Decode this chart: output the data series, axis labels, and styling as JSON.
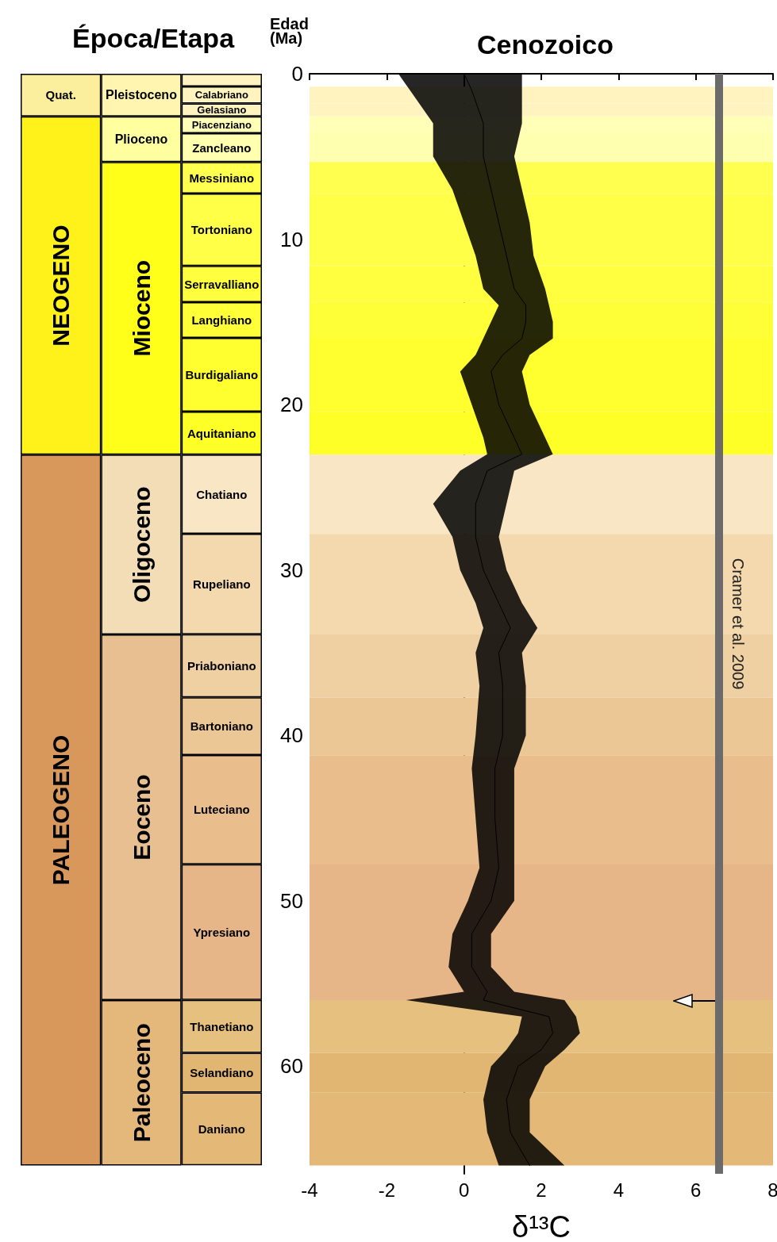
{
  "chart_data": [
    {
      "type": "bar",
      "title": "Época/Etapa",
      "stacked": true,
      "categories": [
        null,
        null,
        null
      ],
      "ylim": [
        66.5,
        0
      ],
      "series": [
        {
          "name": "Quat.",
          "color": "#fbee9c",
          "values": [
            2.58,
            null,
            null
          ]
        },
        {
          "name": "NEOGENO",
          "color": "#fff21a",
          "values": [
            20.45,
            null,
            null
          ]
        },
        {
          "name": "PALEOGENO",
          "color": "#d8985c",
          "values": [
            42.97,
            null,
            null
          ]
        },
        {
          "name": "Pleistoceno",
          "color": "#fff4b0",
          "values": [
            null,
            2.58,
            null
          ]
        },
        {
          "name": "Plioceno",
          "color": "#ffffa0",
          "values": [
            null,
            2.75,
            null
          ]
        },
        {
          "name": "Mioceno",
          "color": "#ffff1a",
          "values": [
            null,
            17.7,
            null
          ]
        },
        {
          "name": "Oligoceno",
          "color": "#f3ddb6",
          "values": [
            null,
            10.87,
            null
          ]
        },
        {
          "name": "Eoceno",
          "color": "#e8bf90",
          "values": [
            null,
            22.1,
            null
          ]
        },
        {
          "name": "Paleoceno",
          "color": "#e4b77a",
          "values": [
            null,
            10,
            null
          ]
        },
        {
          "color": "#fff4c0",
          "values": [
            null,
            null,
            0.77
          ]
        },
        {
          "name": "Calabriano",
          "color": "#fff4c0",
          "values": [
            null,
            null,
            1.03
          ]
        },
        {
          "name": "Gelasiano",
          "color": "#fff4c0",
          "values": [
            null,
            null,
            0.78
          ]
        },
        {
          "name": "Piacenziano",
          "color": "#ffffb8",
          "values": [
            null,
            null,
            1.02
          ]
        },
        {
          "name": "Zancleano",
          "color": "#ffffb0",
          "values": [
            null,
            null,
            1.73
          ]
        },
        {
          "name": "Messiniano",
          "color": "#ffff50",
          "values": [
            null,
            null,
            1.91
          ]
        },
        {
          "name": "Tortoniano",
          "color": "#ffff48",
          "values": [
            null,
            null,
            4.38
          ]
        },
        {
          "name": "Serravalliano",
          "color": "#ffff40",
          "values": [
            null,
            null,
            2.19
          ]
        },
        {
          "name": "Langhiano",
          "color": "#ffff38",
          "values": [
            null,
            null,
            2.15
          ]
        },
        {
          "name": "Burdigaliano",
          "color": "#ffff30",
          "values": [
            null,
            null,
            4.47
          ]
        },
        {
          "name": "Aquitaniano",
          "color": "#ffff28",
          "values": [
            null,
            null,
            2.59
          ]
        },
        {
          "name": "Chatiano",
          "color": "#f8e6c4",
          "values": [
            null,
            null,
            4.79
          ]
        },
        {
          "name": "Rupeliano",
          "color": "#f3d9ad",
          "values": [
            null,
            null,
            6.08
          ]
        },
        {
          "name": "Priaboniano",
          "color": "#efd0a2",
          "values": [
            null,
            null,
            3.81
          ]
        },
        {
          "name": "Bartoniano",
          "color": "#ecc796",
          "values": [
            null,
            null,
            3.49
          ]
        },
        {
          "name": "Luteciano",
          "color": "#e9be8c",
          "values": [
            null,
            null,
            6.6
          ]
        },
        {
          "name": "Ypresiano",
          "color": "#e7b688",
          "values": [
            null,
            null,
            8.2
          ]
        },
        {
          "name": "Thanetiano",
          "color": "#e6c07e",
          "values": [
            null,
            null,
            3.2
          ]
        },
        {
          "name": "Selandiano",
          "color": "#e1b572",
          "values": [
            null,
            null,
            2.4
          ]
        },
        {
          "name": "Daniano",
          "color": "#e4b876",
          "values": [
            null,
            null,
            4.4
          ]
        }
      ]
    },
    {
      "type": "line",
      "title": "Cenozoico",
      "xlabel": "δ¹³C",
      "ylabel": "Edad (Ma)",
      "orientation": "horizontal",
      "x": [
        0,
        1,
        3,
        5,
        7,
        9,
        11,
        13,
        14,
        15,
        16,
        17,
        18,
        20,
        22,
        23,
        24,
        26,
        28,
        30,
        32,
        33.5,
        35,
        37,
        40,
        42,
        45,
        48,
        50,
        52,
        54,
        55.5,
        56,
        57,
        58,
        59,
        60,
        62,
        64,
        66
      ],
      "series": [
        {
          "color": "#000000",
          "values": [
            0,
            0.2,
            0.5,
            0.5,
            0.7,
            0.9,
            1.1,
            1.3,
            1.6,
            1.6,
            1.5,
            1.0,
            0.7,
            0.9,
            1.3,
            1.5,
            0.6,
            0.3,
            0.3,
            0.5,
            0.9,
            1.2,
            0.9,
            1.0,
            1.0,
            0.8,
            0.8,
            0.9,
            0.7,
            0.2,
            0.2,
            0.6,
            0.5,
            2.2,
            2.3,
            2.0,
            1.4,
            1.1,
            1.2,
            1.7
          ],
          "lower": [
            -1.7,
            -1.4,
            -0.8,
            -0.8,
            -0.3,
            0,
            0.3,
            0.5,
            0.9,
            0.7,
            0.5,
            0.3,
            -0.1,
            0.2,
            0.5,
            0.6,
            -0.1,
            -0.8,
            -0.3,
            -0.1,
            0.3,
            0.5,
            0.3,
            0.4,
            0.3,
            0.2,
            0.3,
            0.4,
            0.1,
            -0.3,
            -0.4,
            0,
            -1.5,
            1.5,
            1.4,
            1.1,
            0.7,
            0.5,
            0.6,
            0.9
          ],
          "upper": [
            1.5,
            1.5,
            1.5,
            1.3,
            1.5,
            1.7,
            1.8,
            2.1,
            2.2,
            2.3,
            2.3,
            1.7,
            1.5,
            1.7,
            2.1,
            2.3,
            1.3,
            1.1,
            0.9,
            1.1,
            1.5,
            1.9,
            1.5,
            1.6,
            1.6,
            1.3,
            1.3,
            1.3,
            1.3,
            0.7,
            0.7,
            1.3,
            2.6,
            2.9,
            3.0,
            2.6,
            2.1,
            1.7,
            1.7,
            2.6
          ]
        }
      ],
      "xlim": [
        -4,
        8
      ],
      "xticks": [
        -4,
        -2,
        0,
        2,
        4,
        6,
        8
      ],
      "ylim": [
        66.5,
        0
      ],
      "yticks": [
        0,
        10,
        20,
        30,
        40,
        50,
        60
      ],
      "marker": "none",
      "line_style": "solid",
      "ref_lines": [
        {
          "axis": "x",
          "value": 6.6,
          "label": "Cramer et al. 2009",
          "color": "#6b6b6b"
        }
      ],
      "bands": [
        {
          "axis": "y",
          "from": 0.774,
          "to": 1.8,
          "color": "#fff4c0"
        },
        {
          "axis": "y",
          "from": 1.8,
          "to": 2.58,
          "color": "#fff4c0"
        },
        {
          "axis": "y",
          "from": 2.58,
          "to": 3.6,
          "color": "#ffffb8"
        },
        {
          "axis": "y",
          "from": 3.6,
          "to": 5.333,
          "color": "#ffffb0"
        },
        {
          "axis": "y",
          "from": 5.333,
          "to": 7.246,
          "color": "#ffff50"
        },
        {
          "axis": "y",
          "from": 7.246,
          "to": 11.63,
          "color": "#ffff48"
        },
        {
          "axis": "y",
          "from": 11.63,
          "to": 13.82,
          "color": "#ffff40"
        },
        {
          "axis": "y",
          "from": 13.82,
          "to": 15.97,
          "color": "#ffff38"
        },
        {
          "axis": "y",
          "from": 15.97,
          "to": 20.44,
          "color": "#ffff30"
        },
        {
          "axis": "y",
          "from": 20.44,
          "to": 23.03,
          "color": "#ffff28"
        },
        {
          "axis": "y",
          "from": 23.03,
          "to": 27.82,
          "color": "#f8e6c4"
        },
        {
          "axis": "y",
          "from": 27.82,
          "to": 33.9,
          "color": "#f3d9ad"
        },
        {
          "axis": "y",
          "from": 33.9,
          "to": 37.71,
          "color": "#efd0a2"
        },
        {
          "axis": "y",
          "from": 37.71,
          "to": 41.2,
          "color": "#ecc796"
        },
        {
          "axis": "y",
          "from": 41.2,
          "to": 47.8,
          "color": "#e9be8c"
        },
        {
          "axis": "y",
          "from": 47.8,
          "to": 56,
          "color": "#e7b688"
        },
        {
          "axis": "y",
          "from": 56,
          "to": 59.2,
          "color": "#e6c07e"
        },
        {
          "axis": "y",
          "from": 59.2,
          "to": 61.6,
          "color": "#e1b572"
        },
        {
          "axis": "y",
          "from": 61.6,
          "to": 66,
          "color": "#e4b876"
        }
      ]
    }
  ]
}
